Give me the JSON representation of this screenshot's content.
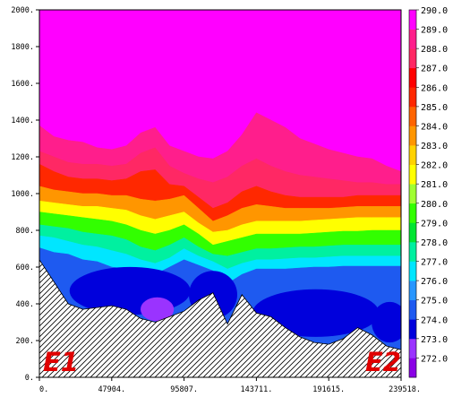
{
  "chart_data": {
    "type": "contour",
    "title": "",
    "xlabel": "",
    "ylabel": "",
    "xlim": [
      0,
      239518
    ],
    "ylim": [
      0,
      2000
    ],
    "x_ticks": [
      "0.",
      "47904.",
      "95807.",
      "143711.",
      "191615.",
      "239518."
    ],
    "y_ticks": [
      "0.",
      "200.",
      "400.",
      "600.",
      "800.",
      "1000.",
      "1200.",
      "1400.",
      "1600.",
      "1800.",
      "2000."
    ],
    "colorbar_labels": [
      "272.0",
      "273.0",
      "274.0",
      "275.0",
      "276.0",
      "277.0",
      "278.0",
      "279.0",
      "280.0",
      "281.0",
      "282.0",
      "283.0",
      "284.0",
      "285.0",
      "286.0",
      "287.0",
      "288.0",
      "289.0",
      "290.0"
    ],
    "colorbar_colors": [
      "#8a00e6",
      "#9a33ff",
      "#0000dc",
      "#1e5af0",
      "#2896ff",
      "#00e6ff",
      "#00f0a0",
      "#00e632",
      "#32ff00",
      "#a0ff32",
      "#ffff00",
      "#ffd200",
      "#ff9600",
      "#ff6400",
      "#ff2800",
      "#ff0000",
      "#ff2864",
      "#ff1e8c",
      "#ff00ff"
    ],
    "corner_labels": [
      "E1",
      "E2"
    ],
    "legend": "right colorbar",
    "x": [
      0,
      9581,
      19162,
      28743,
      38324,
      47904,
      57485,
      67066,
      76647,
      86228,
      95807,
      105388,
      114969,
      124550,
      134131,
      143711,
      153292,
      162873,
      172454,
      182035,
      191615,
      201196,
      210777,
      220358,
      229939,
      239518
    ],
    "terrain": [
      640,
      520,
      400,
      370,
      380,
      390,
      370,
      320,
      300,
      330,
      360,
      420,
      460,
      290,
      450,
      350,
      330,
      270,
      220,
      190,
      180,
      210,
      270,
      230,
      170,
      150
    ],
    "series": [
      {
        "value": 276.0,
        "heights": [
          705,
          680,
          670,
          640,
          630,
          600,
          590,
          570,
          560,
          600,
          640,
          610,
          580,
          510,
          560,
          590,
          590,
          590,
          595,
          600,
          600,
          605,
          605,
          605,
          605,
          605
        ]
      },
      {
        "value": 277.5,
        "heights": [
          770,
          760,
          740,
          720,
          710,
          690,
          670,
          640,
          620,
          650,
          700,
          660,
          630,
          590,
          620,
          640,
          640,
          645,
          650,
          650,
          655,
          660,
          660,
          660,
          660,
          660
        ]
      },
      {
        "value": 279.0,
        "heights": [
          830,
          820,
          810,
          790,
          780,
          770,
          750,
          710,
          690,
          720,
          760,
          710,
          670,
          660,
          680,
          700,
          700,
          705,
          710,
          710,
          715,
          720,
          720,
          720,
          720,
          720
        ]
      },
      {
        "value": 281.0,
        "heights": [
          900,
          890,
          880,
          870,
          860,
          850,
          830,
          800,
          780,
          800,
          830,
          780,
          720,
          740,
          760,
          780,
          780,
          780,
          780,
          785,
          790,
          795,
          795,
          800,
          800,
          800
        ]
      },
      {
        "value": 283.0,
        "heights": [
          960,
          950,
          940,
          930,
          930,
          920,
          910,
          880,
          860,
          880,
          900,
          840,
          790,
          800,
          830,
          850,
          850,
          850,
          850,
          855,
          860,
          865,
          870,
          870,
          870,
          870
        ]
      },
      {
        "value": 285.0,
        "heights": [
          1040,
          1020,
          1010,
          1000,
          1000,
          990,
          990,
          970,
          960,
          970,
          990,
          920,
          850,
          880,
          920,
          940,
          930,
          920,
          920,
          920,
          920,
          925,
          930,
          930,
          930,
          930
        ]
      },
      {
        "value": 287.0,
        "heights": [
          1160,
          1120,
          1090,
          1080,
          1080,
          1070,
          1080,
          1120,
          1130,
          1050,
          1040,
          980,
          920,
          950,
          1010,
          1040,
          1010,
          990,
          980,
          980,
          980,
          980,
          990,
          990,
          990,
          990
        ]
      },
      {
        "value": 288.5,
        "heights": [
          1230,
          1200,
          1170,
          1160,
          1160,
          1150,
          1160,
          1220,
          1250,
          1150,
          1110,
          1080,
          1060,
          1090,
          1150,
          1190,
          1150,
          1120,
          1100,
          1090,
          1080,
          1070,
          1060,
          1060,
          1050,
          1050
        ]
      },
      {
        "value": 290.0,
        "heights": [
          1370,
          1310,
          1290,
          1280,
          1250,
          1240,
          1260,
          1330,
          1360,
          1260,
          1230,
          1200,
          1190,
          1230,
          1320,
          1440,
          1400,
          1360,
          1300,
          1270,
          1240,
          1220,
          1200,
          1190,
          1150,
          1120
        ]
      }
    ],
    "pockets": [
      {
        "value": 274.0,
        "x": 60000,
        "y": 470,
        "x_half_width": 40000,
        "y_half_height": 130
      },
      {
        "value": 274.0,
        "x": 115000,
        "y": 450,
        "x_half_width": 16000,
        "y_half_height": 130
      },
      {
        "value": 274.0,
        "x": 183000,
        "y": 350,
        "x_half_width": 42000,
        "y_half_height": 130
      },
      {
        "value": 274.0,
        "x": 232000,
        "y": 300,
        "x_half_width": 12000,
        "y_half_height": 110
      },
      {
        "value": 273.0,
        "x": 78000,
        "y": 370,
        "x_half_width": 11000,
        "y_half_height": 65
      }
    ]
  }
}
